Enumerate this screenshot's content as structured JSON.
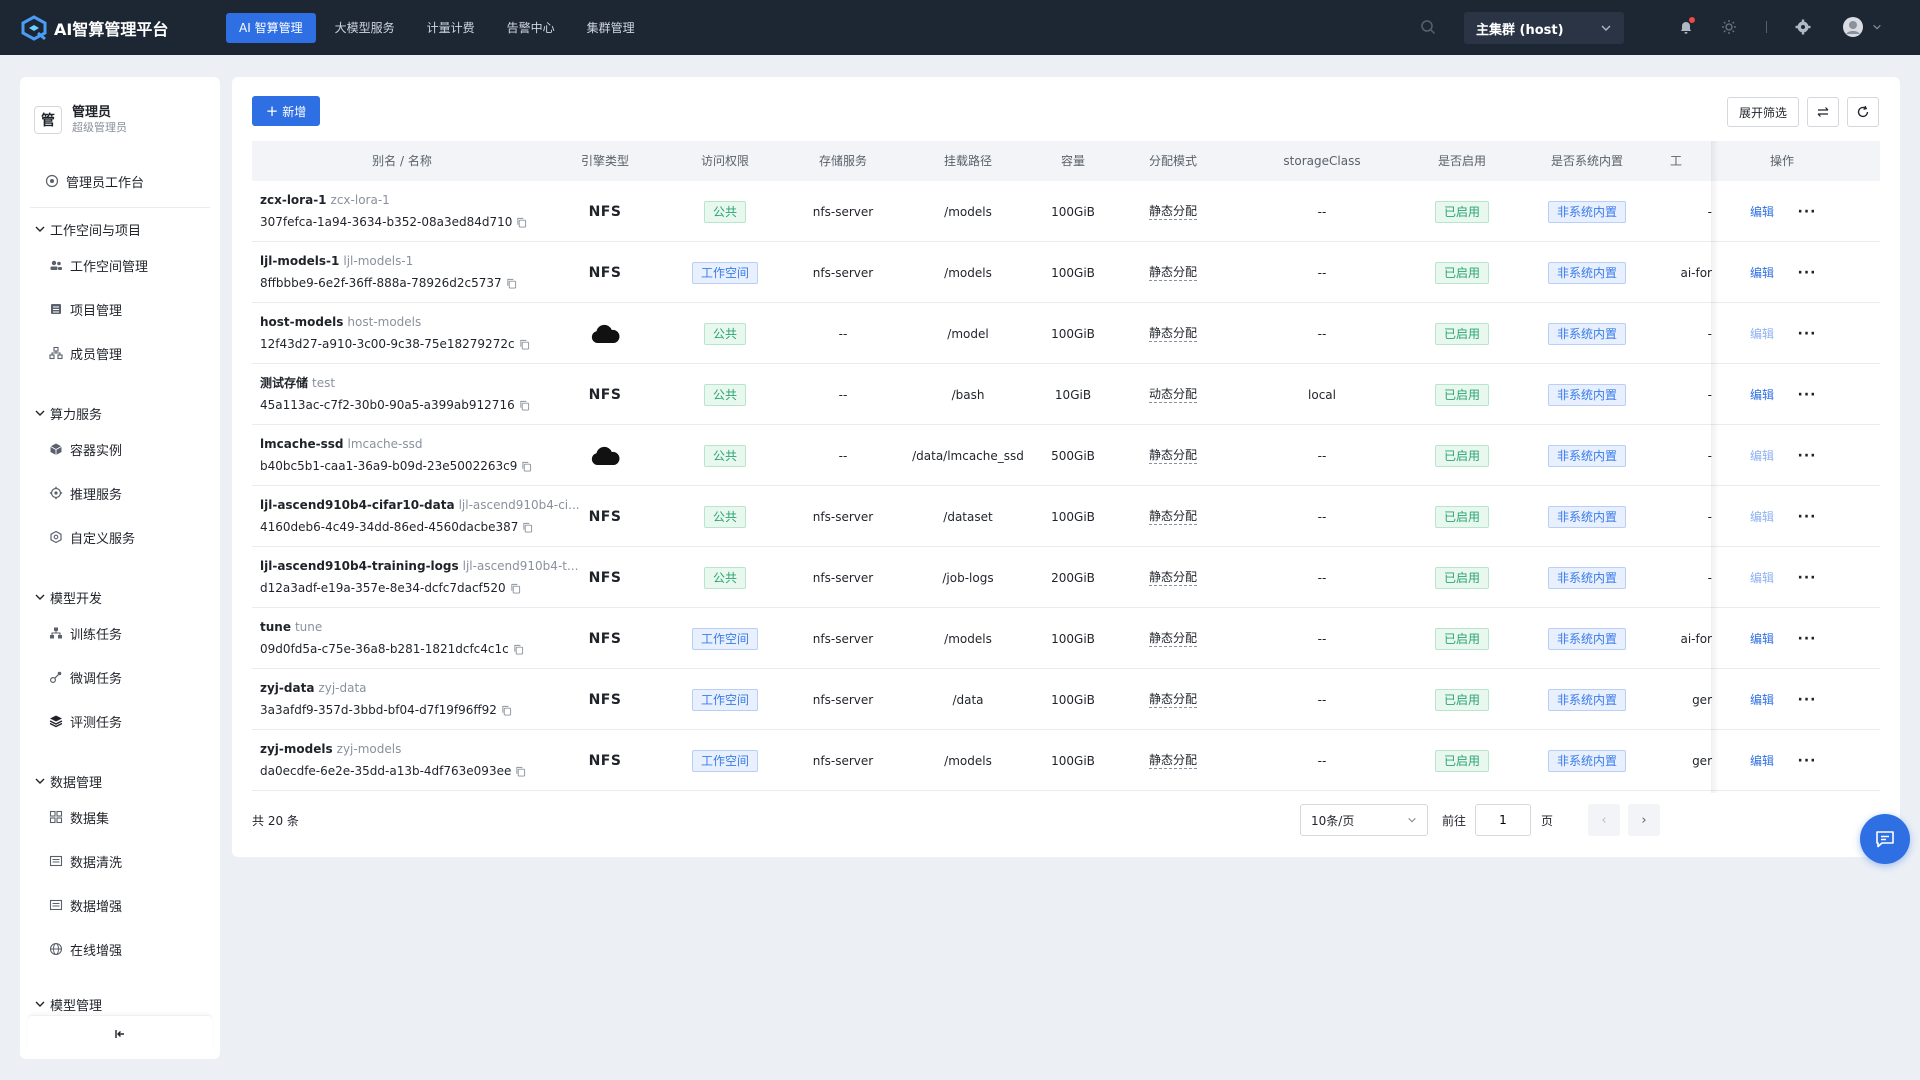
{
  "app": {
    "title": "AI智算管理平台"
  },
  "topnav": [
    {
      "label": "AI 智算管理",
      "active": true
    },
    {
      "label": "大模型服务"
    },
    {
      "label": "计量计费"
    },
    {
      "label": "告警中心"
    },
    {
      "label": "集群管理"
    }
  ],
  "cluster": {
    "value": "主集群 (host)"
  },
  "user": {
    "avatar": "管",
    "name": "管理员",
    "role": "超级管理员"
  },
  "sidebar": {
    "workbench": "管理员工作台",
    "groups": [
      {
        "label": "工作空间与项目",
        "items": [
          "工作空间管理",
          "项目管理",
          "成员管理"
        ]
      },
      {
        "label": "算力服务",
        "items": [
          "容器实例",
          "推理服务",
          "自定义服务"
        ]
      },
      {
        "label": "模型开发",
        "items": [
          "训练任务",
          "微调任务",
          "评测任务"
        ]
      },
      {
        "label": "数据管理",
        "items": [
          "数据集",
          "数据清洗",
          "数据增强",
          "在线增强"
        ]
      },
      {
        "label": "模型管理",
        "items": []
      }
    ]
  },
  "toolbar": {
    "new_label": "新增",
    "filter_label": "展开筛选"
  },
  "table": {
    "headers": {
      "name": "别名 / 名称",
      "engine": "引擎类型",
      "access": "访问权限",
      "storage": "存储服务",
      "mount": "挂载路径",
      "capacity": "容量",
      "alloc": "分配模式",
      "sc": "storageClass",
      "enabled": "是否启用",
      "builtin": "是否系统内置",
      "ws": "工",
      "ops": "操作"
    },
    "rows": [
      {
        "alias": "zcx-lora-1",
        "name": "zcx-lora-1",
        "uid": "307fefca-1a94-3634-b352-08a3ed84d710",
        "engine": "NFS",
        "access": "公共",
        "access_type": "green",
        "storage": "nfs-server",
        "mount": "/models",
        "capacity": "100GiB",
        "alloc": "静态分配",
        "sc": "--",
        "enabled": "已启用",
        "builtin": "非系统内置",
        "ws": "-",
        "edit": "编辑",
        "edit_light": false
      },
      {
        "alias": "ljl-models-1",
        "name": "ljl-models-1",
        "uid": "8ffbbbe9-6e2f-36ff-888a-78926d2c5737",
        "engine": "NFS",
        "access": "工作空间",
        "access_type": "blue",
        "storage": "nfs-server",
        "mount": "/models",
        "capacity": "100GiB",
        "alloc": "静态分配",
        "sc": "--",
        "enabled": "已启用",
        "builtin": "非系统内置",
        "ws": "ai-for",
        "edit": "编辑",
        "edit_light": false
      },
      {
        "alias": "host-models",
        "name": "host-models",
        "uid": "12f43d27-a910-3c00-9c38-75e18279272c",
        "engine": "cloud",
        "access": "公共",
        "access_type": "green",
        "storage": "--",
        "mount": "/model",
        "capacity": "100GiB",
        "alloc": "静态分配",
        "sc": "--",
        "enabled": "已启用",
        "builtin": "非系统内置",
        "ws": "-",
        "edit": "编辑",
        "edit_light": true
      },
      {
        "alias": "测试存储",
        "name": "test",
        "uid": "45a113ac-c7f2-30b0-90a5-a399ab912716",
        "engine": "NFS",
        "access": "公共",
        "access_type": "green",
        "storage": "--",
        "mount": "/bash",
        "capacity": "10GiB",
        "alloc": "动态分配",
        "sc": "local",
        "enabled": "已启用",
        "builtin": "非系统内置",
        "ws": "-",
        "edit": "编辑",
        "edit_light": false
      },
      {
        "alias": "lmcache-ssd",
        "name": "lmcache-ssd",
        "uid": "b40bc5b1-caa1-36a9-b09d-23e5002263c9",
        "engine": "cloud",
        "access": "公共",
        "access_type": "green",
        "storage": "--",
        "mount": "/data/lmcache_ssd",
        "capacity": "500GiB",
        "alloc": "静态分配",
        "sc": "--",
        "enabled": "已启用",
        "builtin": "非系统内置",
        "ws": "-",
        "edit": "编辑",
        "edit_light": true
      },
      {
        "alias": "ljl-ascend910b4-cifar10-data",
        "name": "ljl-ascend910b4-ci...",
        "uid": "4160deb6-4c49-34dd-86ed-4560dacbe387",
        "engine": "NFS",
        "access": "公共",
        "access_type": "green",
        "storage": "nfs-server",
        "mount": "/dataset",
        "capacity": "100GiB",
        "alloc": "静态分配",
        "sc": "--",
        "enabled": "已启用",
        "builtin": "非系统内置",
        "ws": "-",
        "edit": "编辑",
        "edit_light": true
      },
      {
        "alias": "ljl-ascend910b4-training-logs",
        "name": "ljl-ascend910b4-t...",
        "uid": "d12a3adf-e19a-357e-8e34-dcfc7dacf520",
        "engine": "NFS",
        "access": "公共",
        "access_type": "green",
        "storage": "nfs-server",
        "mount": "/job-logs",
        "capacity": "200GiB",
        "alloc": "静态分配",
        "sc": "--",
        "enabled": "已启用",
        "builtin": "非系统内置",
        "ws": "-",
        "edit": "编辑",
        "edit_light": true
      },
      {
        "alias": "tune",
        "name": "tune",
        "uid": "09d0fd5a-c75e-36a8-b281-1821dcfc4c1c",
        "engine": "NFS",
        "access": "工作空间",
        "access_type": "blue",
        "storage": "nfs-server",
        "mount": "/models",
        "capacity": "100GiB",
        "alloc": "静态分配",
        "sc": "--",
        "enabled": "已启用",
        "builtin": "非系统内置",
        "ws": "ai-for",
        "edit": "编辑",
        "edit_light": false
      },
      {
        "alias": "zyj-data",
        "name": "zyj-data",
        "uid": "3a3afdf9-357d-3bbd-bf04-d7f19f96ff92",
        "engine": "NFS",
        "access": "工作空间",
        "access_type": "blue",
        "storage": "nfs-server",
        "mount": "/data",
        "capacity": "100GiB",
        "alloc": "静态分配",
        "sc": "--",
        "enabled": "已启用",
        "builtin": "非系统内置",
        "ws": "ger",
        "edit": "编辑",
        "edit_light": false
      },
      {
        "alias": "zyj-models",
        "name": "zyj-models",
        "uid": "da0ecdfe-6e2e-35dd-a13b-4df763e093ee",
        "engine": "NFS",
        "access": "工作空间",
        "access_type": "blue",
        "storage": "nfs-server",
        "mount": "/models",
        "capacity": "100GiB",
        "alloc": "静态分配",
        "sc": "--",
        "enabled": "已启用",
        "builtin": "非系统内置",
        "ws": "ger",
        "edit": "编辑",
        "edit_light": false
      }
    ]
  },
  "pagination": {
    "total": "共 20 条",
    "page_size": "10条/页",
    "goto_label": "前往",
    "page_value": "1",
    "page_label": "页",
    "prev": "‹",
    "next": "›"
  }
}
